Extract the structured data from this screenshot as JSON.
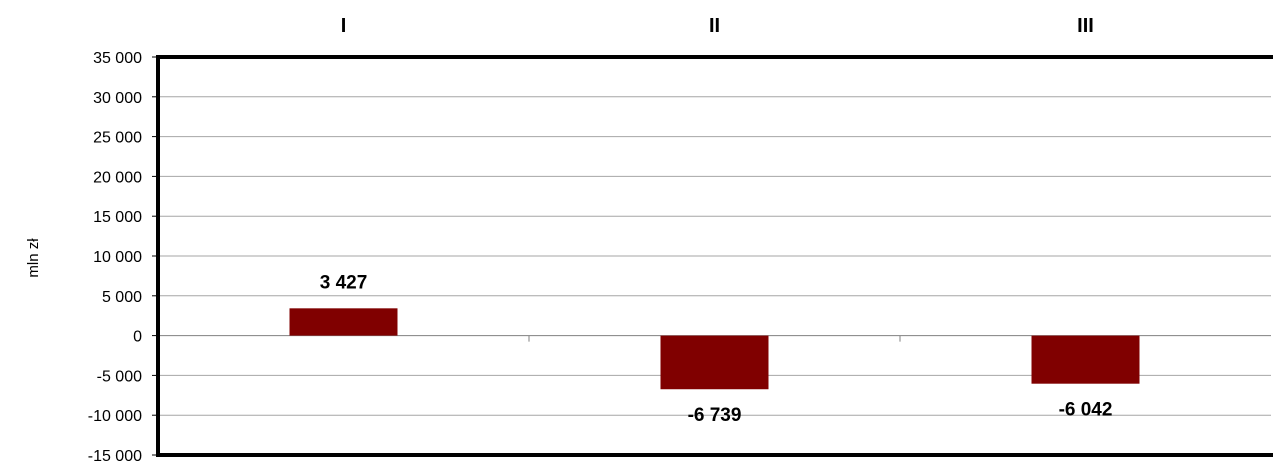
{
  "chart_data": {
    "type": "bar",
    "categories": [
      "I",
      "II",
      "III"
    ],
    "values": [
      3427,
      -6739,
      -6042
    ],
    "data_labels": [
      "3 427",
      "-6 739",
      "-6 042"
    ],
    "ylabel": "mln zł",
    "ylim": [
      -15000,
      35000
    ],
    "y_ticks": [
      35000,
      30000,
      25000,
      20000,
      15000,
      10000,
      5000,
      0,
      -5000,
      -10000,
      -15000
    ],
    "y_tick_labels": [
      "35 000",
      "30 000",
      "25 000",
      "20 000",
      "15 000",
      "10 000",
      "5 000",
      "0",
      "-5 000",
      "-10 000",
      "-15 000"
    ],
    "grid": true,
    "category_labels_position": "top",
    "bar_color": "#800000"
  }
}
